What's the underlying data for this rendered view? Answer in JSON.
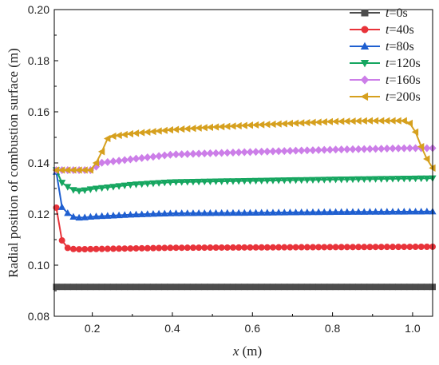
{
  "chart_data": {
    "type": "line",
    "xlabel": {
      "var": "x",
      "unit": " (m)"
    },
    "ylabel": "Radial position of combustion surface (m)",
    "xlim": [
      0.105,
      1.05
    ],
    "ylim": [
      0.08,
      0.2
    ],
    "xticks": [
      0.2,
      0.4,
      0.6,
      0.8,
      1.0
    ],
    "xtick_labels": [
      "0.2",
      "0.4",
      "0.6",
      "0.8",
      "1.0"
    ],
    "yticks": [
      0.08,
      0.1,
      0.12,
      0.14,
      0.16,
      0.18,
      0.2
    ],
    "ytick_labels": [
      "0.08",
      "0.10",
      "0.12",
      "0.14",
      "0.16",
      "0.18",
      "0.20"
    ],
    "legend_position": "top-right",
    "series": [
      {
        "var": "t",
        "suffix": "=0s",
        "color": "#4d4d4d",
        "marker": "square",
        "x": [
          0.11,
          0.5,
          1.05
        ],
        "y": [
          0.0915,
          0.0915,
          0.0915
        ]
      },
      {
        "var": "t",
        "suffix": "=40s",
        "color": "#e8333a",
        "marker": "circle",
        "x": [
          0.11,
          0.125,
          0.14,
          0.16,
          0.2,
          0.4,
          0.7,
          1.05
        ],
        "y": [
          0.1225,
          0.109,
          0.1065,
          0.1062,
          0.1063,
          0.1068,
          0.107,
          0.1072
        ]
      },
      {
        "var": "t",
        "suffix": "=80s",
        "color": "#1f5fd0",
        "marker": "triangle-up",
        "x": [
          0.11,
          0.125,
          0.15,
          0.17,
          0.2,
          0.3,
          0.4,
          0.6,
          0.8,
          1.05
        ],
        "y": [
          0.1365,
          0.122,
          0.119,
          0.1185,
          0.119,
          0.1198,
          0.1203,
          0.1205,
          0.1208,
          0.121
        ]
      },
      {
        "var": "t",
        "suffix": "=120s",
        "color": "#16a660",
        "marker": "triangle-down",
        "x": [
          0.11,
          0.125,
          0.15,
          0.17,
          0.2,
          0.3,
          0.4,
          0.6,
          0.8,
          1.05
        ],
        "y": [
          0.1372,
          0.132,
          0.1295,
          0.129,
          0.1298,
          0.1315,
          0.1325,
          0.133,
          0.1335,
          0.134
        ]
      },
      {
        "var": "t",
        "suffix": "=160s",
        "color": "#cc7ee8",
        "marker": "diamond",
        "x": [
          0.11,
          0.2,
          0.22,
          0.3,
          0.4,
          0.6,
          0.8,
          1.0,
          1.05
        ],
        "y": [
          0.1372,
          0.1372,
          0.14,
          0.1415,
          0.1433,
          0.1443,
          0.1452,
          0.1458,
          0.1458
        ]
      },
      {
        "var": "t",
        "suffix": "=200s",
        "color": "#d6a01e",
        "marker": "triangle-left",
        "x": [
          0.11,
          0.2,
          0.22,
          0.24,
          0.3,
          0.4,
          0.5,
          0.6,
          0.7,
          0.8,
          0.9,
          0.98,
          1.0,
          1.03,
          1.05
        ],
        "y": [
          0.1372,
          0.1372,
          0.143,
          0.1502,
          0.1515,
          0.153,
          0.154,
          0.1548,
          0.1555,
          0.1562,
          0.1565,
          0.1565,
          0.155,
          0.143,
          0.138
        ]
      }
    ]
  }
}
